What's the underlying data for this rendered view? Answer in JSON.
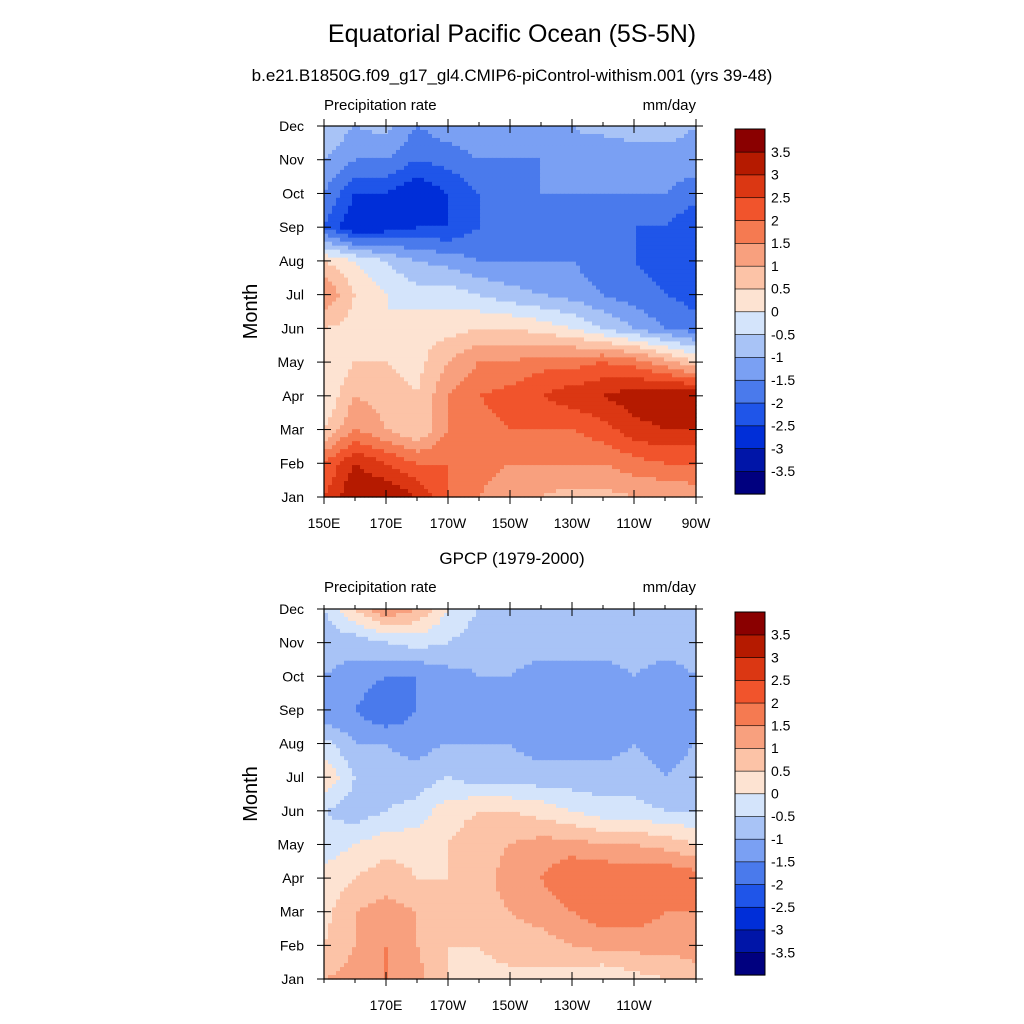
{
  "figure": {
    "title": "Equatorial Pacific Ocean (5S-5N)"
  },
  "colorscale": {
    "colors": [
      "#00007f",
      "#0015a8",
      "#002ed8",
      "#1f55e9",
      "#4a7aec",
      "#7aa0f3",
      "#a8c3f6",
      "#d4e4fb",
      "#fde3d2",
      "#fcc3a7",
      "#f8a07e",
      "#f57a51",
      "#f1542c",
      "#db3713",
      "#b51a00",
      "#8a0000"
    ],
    "level_values": [
      -3.5,
      -3,
      -2.5,
      -2,
      -1.5,
      -1,
      -0.5,
      0,
      0.5,
      1,
      1.5,
      2,
      2.5,
      3,
      3.5
    ],
    "level_labels": [
      "-3.5",
      "-3",
      "-2.5",
      "-2",
      "-1.5",
      "-1",
      "-0.5",
      "0",
      "0.5",
      "1",
      "1.5",
      "2",
      "2.5",
      "3",
      "3.5"
    ]
  },
  "chart_data": [
    {
      "type": "heatmap",
      "title": "b.e21.B1850G.f09_g17_gl4.CMIP6-piControl-withism.001 (yrs 39-48)",
      "left_string": "Precipitation rate",
      "right_string": "mm/day",
      "ylabel": "Month",
      "x_range": [
        150,
        270
      ],
      "x_tick_values": [
        150,
        170,
        190,
        210,
        230,
        250,
        270
      ],
      "x_tick_labels": [
        "150E",
        "170E",
        "170W",
        "150W",
        "130W",
        "110W",
        "90W"
      ],
      "y_tick_labels": [
        "Jan",
        "Feb",
        "Mar",
        "Apr",
        "May",
        "Jun",
        "Jul",
        "Aug",
        "Sep",
        "Oct",
        "Nov",
        "Dec"
      ],
      "x": [
        150,
        160,
        170,
        180,
        190,
        200,
        210,
        220,
        230,
        240,
        250,
        260,
        270
      ],
      "y": [
        "Jan",
        "Feb",
        "Mar",
        "Apr",
        "May",
        "Jun",
        "Jul",
        "Aug",
        "Sep",
        "Oct",
        "Nov",
        "Dec"
      ],
      "z": [
        [
          2.5,
          3.5,
          3.5,
          3.0,
          2.0,
          1.5,
          1.0,
          1.0,
          0.8,
          0.8,
          1.0,
          1.0,
          1.2
        ],
        [
          2.0,
          3.0,
          2.5,
          2.0,
          2.0,
          1.8,
          1.5,
          1.5,
          1.5,
          1.5,
          1.8,
          2.0,
          2.0
        ],
        [
          0.5,
          1.5,
          1.0,
          0.5,
          1.5,
          1.8,
          2.0,
          2.0,
          2.0,
          2.3,
          2.8,
          3.0,
          3.0
        ],
        [
          0.0,
          1.0,
          0.8,
          0.5,
          1.5,
          2.0,
          2.2,
          2.5,
          2.8,
          3.0,
          3.3,
          3.5,
          3.5
        ],
        [
          0.0,
          0.5,
          0.5,
          0.3,
          1.0,
          1.5,
          1.5,
          1.8,
          1.8,
          2.0,
          1.8,
          1.2,
          0.5
        ],
        [
          0.5,
          0.3,
          0.0,
          0.3,
          0.3,
          0.5,
          0.5,
          0.3,
          0.0,
          -0.5,
          -1.0,
          -1.5,
          -1.8
        ],
        [
          1.5,
          0.5,
          0.0,
          -0.3,
          -0.2,
          -0.5,
          -0.8,
          -1.0,
          -1.2,
          -1.5,
          -1.8,
          -2.0,
          -2.2
        ],
        [
          0.5,
          0.0,
          -0.5,
          -1.0,
          -1.2,
          -1.5,
          -1.5,
          -1.5,
          -1.5,
          -1.8,
          -2.0,
          -2.2,
          -2.5
        ],
        [
          -2.0,
          -3.0,
          -2.8,
          -2.5,
          -2.5,
          -2.0,
          -2.0,
          -1.8,
          -1.8,
          -1.8,
          -2.0,
          -2.0,
          -2.5
        ],
        [
          -1.5,
          -2.5,
          -2.5,
          -3.0,
          -2.5,
          -2.0,
          -1.8,
          -1.5,
          -1.5,
          -1.5,
          -1.5,
          -1.5,
          -1.8
        ],
        [
          -1.0,
          -1.5,
          -1.5,
          -2.0,
          -1.8,
          -1.5,
          -1.5,
          -1.5,
          -1.2,
          -1.5,
          -1.2,
          -1.2,
          -1.2
        ],
        [
          -0.5,
          -1.0,
          -0.8,
          -1.5,
          -1.2,
          -1.0,
          -1.0,
          -1.0,
          -1.0,
          -0.8,
          -0.8,
          -0.8,
          -1.0
        ]
      ]
    },
    {
      "type": "heatmap",
      "title": "GPCP (1979-2000)",
      "left_string": "Precipitation rate",
      "right_string": "mm/day",
      "ylabel": "Month",
      "x_range": [
        150,
        270
      ],
      "x_tick_values": [
        170,
        190,
        210,
        230,
        250
      ],
      "x_tick_labels": [
        "170E",
        "170W",
        "150W",
        "130W",
        "110W"
      ],
      "y_tick_labels": [
        "Jan",
        "Feb",
        "Mar",
        "Apr",
        "May",
        "Jun",
        "Jul",
        "Aug",
        "Sep",
        "Oct",
        "Nov",
        "Dec"
      ],
      "x": [
        150,
        160,
        170,
        180,
        190,
        200,
        210,
        220,
        230,
        240,
        250,
        260,
        270
      ],
      "y": [
        "Jan",
        "Feb",
        "Mar",
        "Apr",
        "May",
        "Jun",
        "Jul",
        "Aug",
        "Sep",
        "Oct",
        "Nov",
        "Dec"
      ],
      "z": [
        [
          1.0,
          1.2,
          1.5,
          1.2,
          0.5,
          0.3,
          0.3,
          0.3,
          0.2,
          0.0,
          0.3,
          0.5,
          0.8
        ],
        [
          0.5,
          1.0,
          1.5,
          1.0,
          0.5,
          0.5,
          0.8,
          0.8,
          1.0,
          1.2,
          1.2,
          1.2,
          1.2
        ],
        [
          0.3,
          1.0,
          1.2,
          1.0,
          0.5,
          0.8,
          1.0,
          1.2,
          1.5,
          1.8,
          1.8,
          1.5,
          1.5
        ],
        [
          0.2,
          0.5,
          0.8,
          0.5,
          0.5,
          0.8,
          1.2,
          1.5,
          2.0,
          2.0,
          1.8,
          2.0,
          1.8
        ],
        [
          -0.3,
          0.0,
          0.3,
          0.3,
          0.5,
          0.8,
          1.0,
          1.2,
          1.2,
          1.0,
          1.0,
          0.8,
          0.5
        ],
        [
          -0.5,
          -0.8,
          -0.5,
          -0.3,
          0.3,
          0.5,
          0.5,
          0.3,
          0.0,
          -0.3,
          -0.3,
          -0.5,
          -0.5
        ],
        [
          0.5,
          -0.5,
          -0.8,
          -0.8,
          -0.5,
          -0.8,
          -0.8,
          -0.8,
          -0.8,
          -0.8,
          -0.8,
          -1.0,
          -0.8
        ],
        [
          -0.3,
          -1.0,
          -1.0,
          -1.2,
          -1.0,
          -1.0,
          -1.0,
          -1.2,
          -1.2,
          -1.2,
          -1.0,
          -1.2,
          -1.0
        ],
        [
          -1.5,
          -1.5,
          -2.0,
          -1.5,
          -1.2,
          -1.2,
          -1.5,
          -1.5,
          -1.5,
          -1.5,
          -1.2,
          -1.5,
          -1.2
        ],
        [
          -1.0,
          -1.2,
          -1.5,
          -1.5,
          -1.2,
          -1.0,
          -1.0,
          -1.2,
          -1.2,
          -1.2,
          -1.0,
          -1.2,
          -1.0
        ],
        [
          -0.8,
          -0.8,
          -0.5,
          -0.3,
          -0.5,
          -0.8,
          -0.8,
          -0.8,
          -0.8,
          -0.8,
          -0.8,
          -0.8,
          -0.8
        ],
        [
          -0.5,
          0.5,
          1.5,
          1.0,
          0.0,
          -0.5,
          -0.5,
          -0.5,
          -0.5,
          -0.5,
          -0.5,
          -0.5,
          -0.5
        ]
      ]
    }
  ]
}
